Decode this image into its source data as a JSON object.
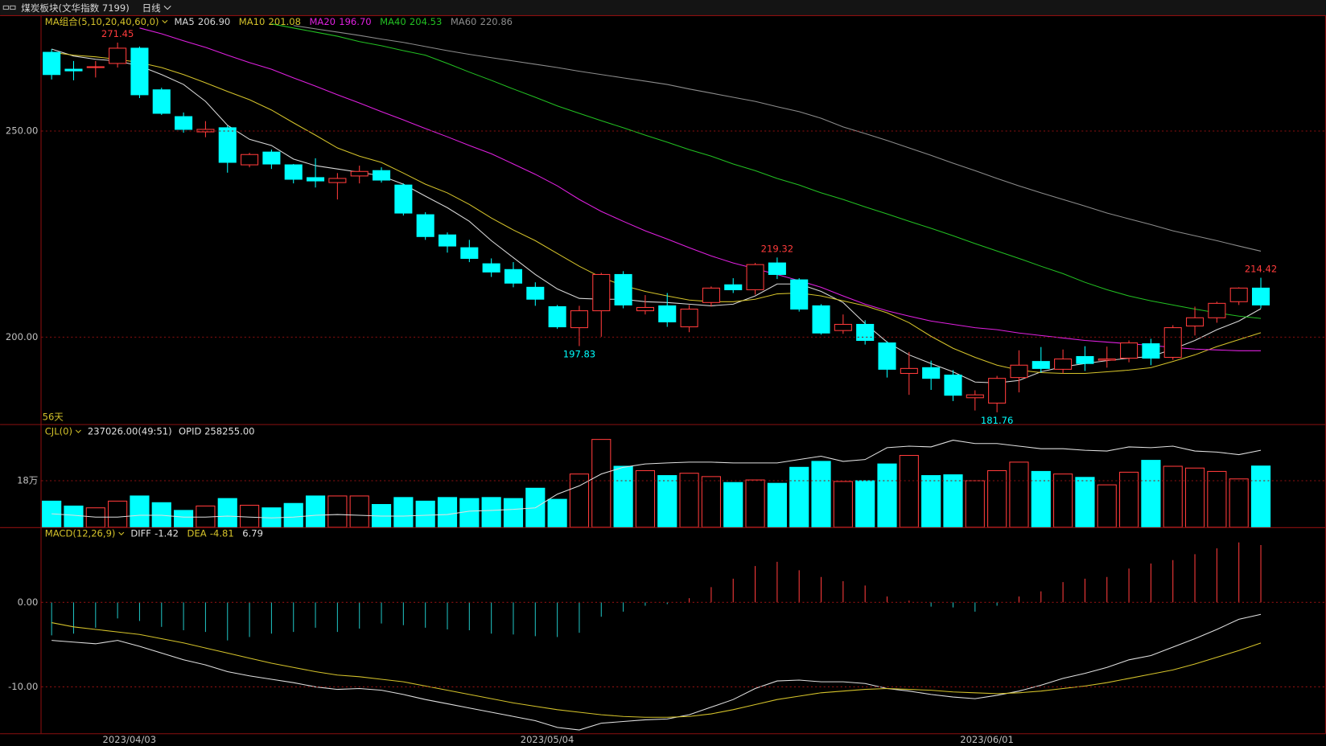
{
  "header": {
    "title": "煤炭板块(文华指数 7199)",
    "period": "日线"
  },
  "chart_data": [
    {
      "type": "candlestick",
      "title": "MA组合(5,10,20,40,60,0)",
      "footnote": "56天",
      "categories": [
        null,
        null,
        null,
        "2023/04/03",
        null,
        null,
        null,
        null,
        null,
        null,
        null,
        null,
        null,
        null,
        null,
        null,
        null,
        null,
        null,
        null,
        null,
        null,
        "2023/05/04",
        null,
        null,
        null,
        null,
        null,
        null,
        null,
        null,
        null,
        null,
        null,
        null,
        null,
        null,
        null,
        null,
        null,
        null,
        null,
        "2023/06/01",
        null,
        null,
        null,
        null,
        null,
        null,
        null,
        null,
        null,
        null,
        null,
        null,
        null
      ],
      "open": [
        269.1,
        265.0,
        265.4,
        266.4,
        270.1,
        260.0,
        253.5,
        249.8,
        250.8,
        241.8,
        244.9,
        241.8,
        238.7,
        237.5,
        239.1,
        240.4,
        236.9,
        229.7,
        224.8,
        221.7,
        217.8,
        216.4,
        212.1,
        207.4,
        202.3,
        206.4,
        215.2,
        206.4,
        207.6,
        202.5,
        208.4,
        212.7,
        211.5,
        218.0,
        213.9,
        207.6,
        201.6,
        203.1,
        198.6,
        191.2,
        192.6,
        190.8,
        185.3,
        184.0,
        190.2,
        194.1,
        192.2,
        195.3,
        194.4,
        194.9,
        198.4,
        195.1,
        202.7,
        204.7,
        208.6,
        211.9
      ],
      "high": [
        269.9,
        267.0,
        267.0,
        271.45,
        270.5,
        260.5,
        254.5,
        252.4,
        251.3,
        244.7,
        245.5,
        242.0,
        243.4,
        239.8,
        241.6,
        241.2,
        237.3,
        230.3,
        225.4,
        223.6,
        219.1,
        218.2,
        213.3,
        207.8,
        207.6,
        215.6,
        216.0,
        210.2,
        210.7,
        207.8,
        212.3,
        214.3,
        218.0,
        219.32,
        214.3,
        208.0,
        205.5,
        204.1,
        199.0,
        196.4,
        194.3,
        192.0,
        187.1,
        190.6,
        196.8,
        197.6,
        197.0,
        197.8,
        197.7,
        199.2,
        199.6,
        202.9,
        207.4,
        208.6,
        212.1,
        214.42
      ],
      "low": [
        262.5,
        262.3,
        263.0,
        265.4,
        258.0,
        253.9,
        249.6,
        248.5,
        239.9,
        241.2,
        240.8,
        237.3,
        236.3,
        233.4,
        237.3,
        237.5,
        229.5,
        223.6,
        220.5,
        218.2,
        214.6,
        212.1,
        207.6,
        202.0,
        197.83,
        200.1,
        207.0,
        205.5,
        202.5,
        201.2,
        207.4,
        210.7,
        210.3,
        214.1,
        206.2,
        200.6,
        200.8,
        198.2,
        190.2,
        186.0,
        187.2,
        184.5,
        182.2,
        181.76,
        186.6,
        191.4,
        191.2,
        191.8,
        192.6,
        193.9,
        193.2,
        194.5,
        200.4,
        203.5,
        207.8,
        207.0
      ],
      "close": [
        263.7,
        264.6,
        265.6,
        270.1,
        258.8,
        254.3,
        250.4,
        250.4,
        242.4,
        244.3,
        242.0,
        238.3,
        237.9,
        238.5,
        240.2,
        238.1,
        230.1,
        224.4,
        222.1,
        219.1,
        215.8,
        213.1,
        209.2,
        202.5,
        206.4,
        215.2,
        207.8,
        207.2,
        203.7,
        206.8,
        211.9,
        211.5,
        217.6,
        215.2,
        206.8,
        201.0,
        203.1,
        199.2,
        192.2,
        192.4,
        190.0,
        185.9,
        186.0,
        190.0,
        193.2,
        192.4,
        194.7,
        193.6,
        194.7,
        198.6,
        194.9,
        202.3,
        204.7,
        208.2,
        211.9,
        207.8
      ],
      "high_labels": [
        null,
        null,
        null,
        "271.45",
        null,
        null,
        null,
        null,
        null,
        null,
        null,
        null,
        null,
        null,
        null,
        null,
        null,
        null,
        null,
        null,
        null,
        null,
        null,
        null,
        null,
        null,
        null,
        null,
        null,
        null,
        null,
        null,
        null,
        "219.32",
        null,
        null,
        null,
        null,
        null,
        null,
        null,
        null,
        null,
        null,
        null,
        null,
        null,
        null,
        null,
        null,
        null,
        null,
        null,
        null,
        null,
        "214.42"
      ],
      "low_labels": [
        null,
        null,
        null,
        null,
        null,
        null,
        null,
        null,
        null,
        null,
        null,
        null,
        null,
        null,
        null,
        null,
        null,
        null,
        null,
        null,
        null,
        null,
        null,
        null,
        "197.83",
        null,
        null,
        null,
        null,
        null,
        null,
        null,
        null,
        null,
        null,
        null,
        null,
        null,
        null,
        null,
        null,
        null,
        null,
        "181.76",
        null,
        null,
        null,
        null,
        null,
        null,
        null,
        null,
        null,
        null,
        null,
        null
      ],
      "up_color": "#ff3b3b",
      "down_color": "#00ffff",
      "ylim": [
        178.9,
        278.1
      ],
      "yticks": [
        {
          "value": 200,
          "label": "200.00"
        },
        {
          "value": 250,
          "label": "250.00"
        }
      ],
      "grid": true,
      "series": [
        {
          "name": "MA5",
          "color": "#d8d8d8",
          "last_label": "206.90",
          "values": [
            269.9,
            268.2,
            267.4,
            267.0,
            265.8,
            263.7,
            261.3,
            257.2,
            251.4,
            248.0,
            246.5,
            243.2,
            241.6,
            240.8,
            240.0,
            239.1,
            237.1,
            234.2,
            231.4,
            228.1,
            223.4,
            219.3,
            215.2,
            211.7,
            209.4,
            209.2,
            209.2,
            208.6,
            208.4,
            208.0,
            207.6,
            208.0,
            210.0,
            212.9,
            212.9,
            211.1,
            208.4,
            203.3,
            198.8,
            195.7,
            193.6,
            191.6,
            189.1,
            188.9,
            189.5,
            191.6,
            192.8,
            193.6,
            194.3,
            194.9,
            195.3,
            197.1,
            199.2,
            201.8,
            203.9,
            206.9
          ]
        },
        {
          "name": "MA10",
          "color": "#d4c22a",
          "last_label": "201.08",
          "values": [
            269.1,
            268.4,
            268.0,
            267.4,
            266.6,
            265.4,
            263.7,
            261.7,
            259.6,
            257.6,
            255.1,
            252.0,
            249.0,
            245.9,
            243.9,
            242.4,
            239.8,
            237.1,
            235.0,
            232.2,
            228.9,
            226.0,
            223.4,
            220.3,
            217.2,
            214.5,
            212.5,
            211.1,
            210.0,
            209.0,
            208.6,
            208.6,
            209.2,
            210.5,
            210.7,
            210.0,
            208.8,
            207.6,
            205.9,
            203.5,
            200.2,
            197.3,
            195.1,
            193.2,
            192.0,
            191.4,
            191.2,
            191.2,
            191.6,
            192.0,
            192.6,
            194.1,
            195.7,
            197.7,
            199.4,
            201.08
          ]
        },
        {
          "name": "MA20",
          "color": "#e020e0",
          "last_label": "196.70",
          "values": [
            null,
            null,
            null,
            null,
            275.0,
            273.6,
            271.9,
            270.3,
            268.4,
            266.6,
            265.0,
            262.9,
            260.9,
            258.8,
            256.8,
            254.7,
            252.7,
            250.6,
            248.6,
            246.5,
            244.5,
            242.0,
            239.5,
            236.7,
            233.4,
            230.5,
            228.1,
            225.8,
            223.8,
            221.7,
            219.7,
            218.0,
            216.6,
            215.2,
            213.7,
            212.1,
            210.0,
            208.0,
            206.4,
            205.1,
            203.9,
            203.1,
            202.3,
            201.8,
            201.0,
            200.4,
            199.8,
            199.2,
            198.8,
            198.4,
            198.0,
            197.5,
            197.1,
            196.9,
            196.7,
            196.7
          ]
        },
        {
          "name": "MA40",
          "color": "#22c022",
          "last_label": "204.53",
          "values": [
            null,
            null,
            null,
            null,
            null,
            null,
            null,
            null,
            null,
            null,
            276.0,
            275.0,
            274.0,
            273.0,
            271.7,
            270.7,
            269.5,
            268.4,
            266.4,
            264.3,
            262.3,
            260.2,
            258.2,
            256.1,
            254.3,
            252.5,
            250.8,
            249.0,
            247.3,
            245.5,
            243.9,
            242.0,
            240.4,
            238.5,
            236.9,
            235.0,
            233.4,
            231.6,
            229.9,
            228.1,
            226.4,
            224.6,
            222.7,
            220.9,
            219.1,
            217.2,
            215.4,
            213.3,
            211.5,
            210.0,
            208.8,
            207.8,
            206.8,
            205.9,
            205.1,
            204.53
          ]
        },
        {
          "name": "MA60",
          "color": "#8c8c8c",
          "last_label": "220.86",
          "values": [
            null,
            null,
            null,
            null,
            null,
            null,
            null,
            null,
            null,
            null,
            null,
            275.6,
            274.8,
            274.0,
            273.2,
            272.3,
            271.5,
            270.5,
            269.5,
            268.6,
            267.8,
            267.0,
            266.2,
            265.4,
            264.5,
            263.7,
            262.9,
            262.1,
            261.3,
            260.2,
            259.2,
            258.2,
            257.2,
            255.9,
            254.7,
            253.1,
            251.0,
            249.4,
            247.7,
            245.9,
            244.1,
            242.2,
            240.4,
            238.5,
            236.7,
            235.0,
            233.4,
            231.8,
            230.1,
            228.7,
            227.3,
            225.8,
            224.6,
            223.4,
            222.1,
            220.86
          ]
        }
      ]
    },
    {
      "type": "bar",
      "title": "CJL(0)",
      "info": "237026.00(49:51)",
      "info2": "OPID 258255.00",
      "values": [
        10.1,
        8.2,
        7.5,
        10.1,
        12.1,
        9.5,
        6.5,
        8.2,
        11.1,
        8.5,
        7.5,
        9.2,
        12.1,
        12.1,
        12.1,
        8.8,
        11.5,
        10.1,
        11.5,
        11.1,
        11.5,
        11.1,
        15.1,
        10.8,
        20.6,
        34.0,
        23.6,
        21.9,
        20.0,
        20.9,
        19.6,
        17.3,
        18.3,
        17.0,
        23.2,
        25.5,
        17.7,
        18.0,
        24.5,
        27.8,
        20.0,
        20.3,
        18.0,
        21.9,
        25.2,
        21.6,
        20.6,
        19.3,
        16.4,
        21.3,
        25.9,
        23.6,
        22.9,
        21.6,
        18.7,
        23.7
      ],
      "up_color": "#ff3b3b",
      "down_color": "#00ffff",
      "ylim": [
        0,
        39.6
      ],
      "yticks": [
        {
          "value": 18,
          "label": "18万"
        }
      ],
      "grid": true,
      "series": [
        {
          "color": "#e0e0e0",
          "values": [
            5.2,
            4.6,
            3.9,
            3.9,
            4.6,
            4.6,
            3.9,
            3.9,
            4.3,
            3.9,
            3.6,
            3.9,
            4.6,
            4.9,
            4.6,
            4.3,
            4.3,
            4.6,
            4.9,
            6.2,
            6.5,
            6.9,
            7.5,
            12.8,
            16.0,
            20.6,
            23.2,
            24.5,
            24.9,
            25.2,
            25.2,
            24.9,
            24.9,
            24.9,
            26.2,
            27.5,
            25.5,
            26.2,
            30.8,
            31.4,
            31.1,
            33.7,
            32.4,
            32.4,
            31.4,
            30.4,
            30.4,
            29.8,
            29.5,
            31.1,
            30.8,
            31.4,
            29.5,
            29.1,
            28.1,
            29.8
          ]
        }
      ]
    },
    {
      "type": "macd",
      "title": "MACD(12,26,9)",
      "histogram": {
        "last_label": "6.79",
        "up_color": "#ff3b3b",
        "down_color": "#1fbfbf",
        "values": [
          -3.9,
          -3.7,
          -3.0,
          -1.9,
          -2.2,
          -2.9,
          -3.3,
          -3.5,
          -4.5,
          -4.1,
          -3.7,
          -3.5,
          -3.0,
          -3.5,
          -3.1,
          -2.5,
          -2.7,
          -3.0,
          -3.2,
          -3.3,
          -3.7,
          -3.8,
          -4.0,
          -4.1,
          -3.6,
          -1.7,
          -1.1,
          -0.4,
          -0.2,
          0.5,
          1.8,
          2.8,
          4.3,
          4.8,
          3.8,
          3.0,
          2.5,
          2.0,
          0.7,
          0.2,
          -0.5,
          -0.6,
          -1.1,
          -0.4,
          0.7,
          1.3,
          2.4,
          2.8,
          3.0,
          4.0,
          4.6,
          5.0,
          5.7,
          6.4,
          7.1,
          6.79
        ]
      },
      "ylim": [
        -15.5,
        8.8
      ],
      "yticks": [
        {
          "value": 0,
          "label": "0.00"
        },
        {
          "value": -10,
          "label": "-10.00"
        }
      ],
      "grid": true,
      "series": [
        {
          "name": "DIFF",
          "color": "#e0e0e0",
          "last_label": "-1.42",
          "values": [
            -4.5,
            -4.7,
            -4.9,
            -4.5,
            -5.2,
            -6.0,
            -6.8,
            -7.4,
            -8.2,
            -8.7,
            -9.1,
            -9.5,
            -10.0,
            -10.3,
            -10.2,
            -10.4,
            -10.9,
            -11.5,
            -12.0,
            -12.5,
            -13.0,
            -13.5,
            -14.0,
            -14.8,
            -15.1,
            -14.3,
            -14.1,
            -13.9,
            -13.8,
            -13.3,
            -12.4,
            -11.5,
            -10.2,
            -9.3,
            -9.2,
            -9.4,
            -9.4,
            -9.6,
            -10.2,
            -10.5,
            -10.9,
            -11.2,
            -11.4,
            -11.0,
            -10.5,
            -9.8,
            -9.0,
            -8.4,
            -7.7,
            -6.8,
            -6.3,
            -5.3,
            -4.3,
            -3.2,
            -2.0,
            -1.42
          ]
        },
        {
          "name": "DEA",
          "color": "#d4c22a",
          "last_label": "-4.81",
          "values": [
            -2.4,
            -2.9,
            -3.2,
            -3.5,
            -3.8,
            -4.3,
            -4.8,
            -5.4,
            -6.0,
            -6.6,
            -7.2,
            -7.7,
            -8.2,
            -8.6,
            -8.8,
            -9.1,
            -9.4,
            -9.9,
            -10.4,
            -10.9,
            -11.4,
            -11.9,
            -12.3,
            -12.7,
            -13.0,
            -13.3,
            -13.5,
            -13.6,
            -13.6,
            -13.5,
            -13.2,
            -12.7,
            -12.1,
            -11.5,
            -11.1,
            -10.7,
            -10.5,
            -10.3,
            -10.2,
            -10.3,
            -10.4,
            -10.6,
            -10.7,
            -10.8,
            -10.7,
            -10.5,
            -10.2,
            -9.9,
            -9.5,
            -9.0,
            -8.5,
            -8.0,
            -7.3,
            -6.5,
            -5.7,
            -4.81
          ]
        }
      ]
    }
  ]
}
